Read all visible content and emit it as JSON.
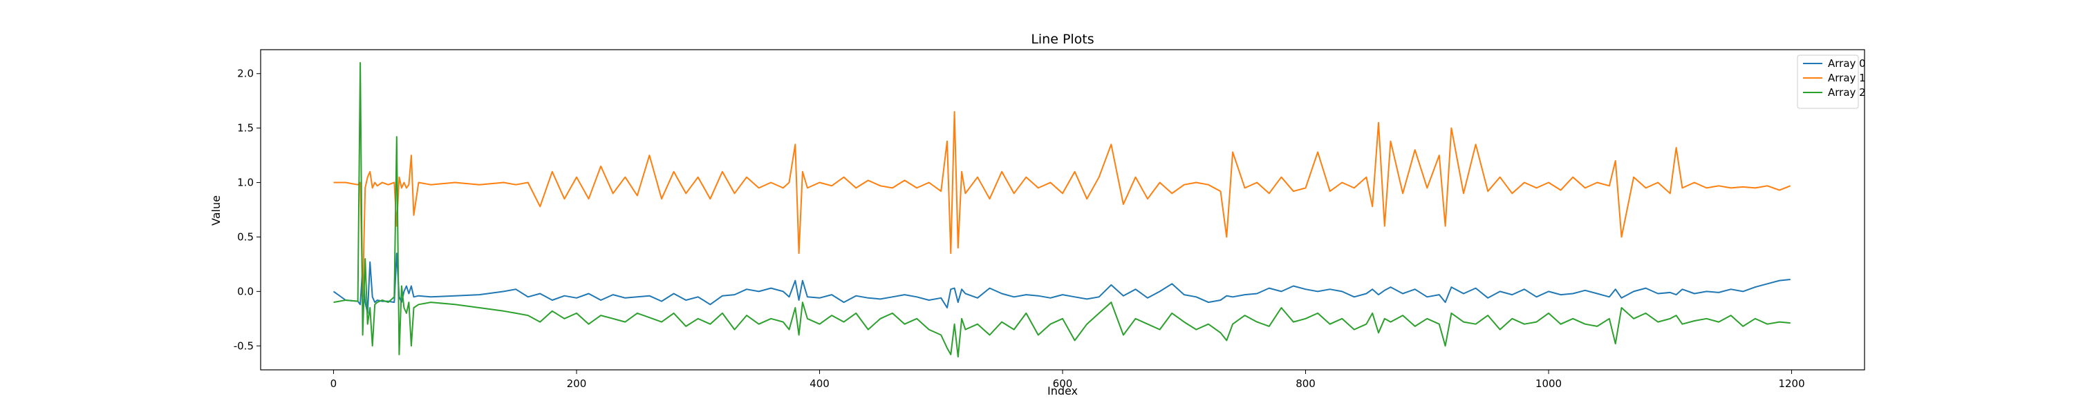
{
  "chart_data": {
    "type": "line",
    "title": "Line Plots",
    "xlabel": "Index",
    "ylabel": "Value",
    "xlim": [
      -60,
      1260
    ],
    "ylim": [
      -0.72,
      2.22
    ],
    "xticks": [
      0,
      200,
      400,
      600,
      800,
      1000,
      1200
    ],
    "yticks": [
      -0.5,
      0.0,
      0.5,
      1.0,
      1.5,
      2.0
    ],
    "ytick_labels": [
      "-0.5",
      "0.0",
      "0.5",
      "1.0",
      "1.5",
      "2.0"
    ],
    "grid": false,
    "legend_position": "top-right",
    "x": [
      0,
      10,
      20,
      22,
      24,
      26,
      28,
      30,
      32,
      34,
      36,
      40,
      45,
      50,
      52,
      54,
      56,
      58,
      60,
      62,
      64,
      66,
      70,
      80,
      100,
      120,
      140,
      150,
      160,
      170,
      180,
      190,
      200,
      210,
      220,
      230,
      240,
      250,
      260,
      270,
      280,
      290,
      300,
      310,
      320,
      330,
      340,
      350,
      360,
      370,
      375,
      380,
      383,
      386,
      390,
      400,
      410,
      420,
      430,
      440,
      450,
      460,
      470,
      480,
      490,
      500,
      505,
      508,
      511,
      514,
      517,
      520,
      530,
      540,
      550,
      560,
      570,
      580,
      590,
      600,
      610,
      620,
      630,
      640,
      650,
      660,
      670,
      680,
      690,
      700,
      710,
      720,
      730,
      735,
      740,
      750,
      760,
      770,
      780,
      790,
      800,
      810,
      820,
      830,
      840,
      850,
      855,
      860,
      865,
      870,
      880,
      890,
      900,
      910,
      915,
      920,
      930,
      940,
      950,
      960,
      970,
      980,
      990,
      1000,
      1010,
      1020,
      1030,
      1040,
      1050,
      1055,
      1060,
      1070,
      1080,
      1090,
      1100,
      1105,
      1110,
      1120,
      1130,
      1140,
      1150,
      1160,
      1170,
      1180,
      1190,
      1199
    ],
    "series": [
      {
        "name": "Array 0",
        "color": "#1f77b4",
        "values": [
          0.0,
          -0.08,
          -0.09,
          -0.12,
          0.22,
          -0.1,
          -0.2,
          0.27,
          -0.05,
          -0.1,
          -0.08,
          -0.09,
          -0.09,
          -0.1,
          0.35,
          -0.05,
          -0.1,
          0.0,
          0.05,
          -0.02,
          0.05,
          -0.05,
          -0.04,
          -0.05,
          -0.04,
          -0.03,
          0.0,
          0.02,
          -0.05,
          -0.02,
          -0.08,
          -0.04,
          -0.06,
          -0.02,
          -0.08,
          -0.03,
          -0.06,
          -0.05,
          -0.04,
          -0.09,
          -0.02,
          -0.08,
          -0.05,
          -0.12,
          -0.04,
          -0.03,
          0.02,
          0.0,
          0.03,
          0.0,
          -0.05,
          0.1,
          -0.08,
          0.1,
          -0.05,
          -0.06,
          -0.03,
          -0.1,
          -0.04,
          -0.06,
          -0.07,
          -0.05,
          -0.03,
          -0.05,
          -0.08,
          -0.06,
          -0.15,
          0.02,
          0.03,
          -0.1,
          0.02,
          -0.02,
          -0.06,
          0.03,
          -0.02,
          -0.05,
          -0.03,
          -0.04,
          -0.06,
          -0.03,
          -0.05,
          -0.07,
          -0.05,
          0.06,
          -0.04,
          0.02,
          -0.06,
          0.0,
          0.07,
          -0.03,
          -0.05,
          -0.1,
          -0.08,
          -0.04,
          -0.05,
          -0.03,
          -0.02,
          0.03,
          0.0,
          0.05,
          0.02,
          0.0,
          0.02,
          0.0,
          -0.05,
          -0.02,
          0.02,
          -0.03,
          0.01,
          0.04,
          -0.02,
          0.02,
          -0.05,
          -0.03,
          -0.1,
          0.04,
          -0.02,
          0.03,
          -0.06,
          0.0,
          -0.03,
          0.02,
          -0.05,
          0.0,
          -0.03,
          -0.02,
          0.01,
          -0.02,
          -0.05,
          0.02,
          -0.06,
          0.0,
          0.03,
          -0.02,
          -0.01,
          -0.03,
          0.02,
          -0.02,
          0.0,
          -0.01,
          0.02,
          0.0,
          0.04,
          0.07,
          0.1,
          0.11
        ]
      },
      {
        "name": "Array 1",
        "color": "#ff7f0e",
        "values": [
          1.0,
          1.0,
          0.98,
          1.0,
          -0.05,
          0.95,
          1.05,
          1.1,
          0.95,
          1.0,
          0.97,
          1.0,
          0.98,
          1.0,
          0.6,
          1.05,
          0.95,
          1.0,
          0.95,
          0.98,
          1.25,
          0.7,
          1.0,
          0.98,
          1.0,
          0.98,
          1.0,
          0.98,
          1.0,
          0.78,
          1.1,
          0.85,
          1.05,
          0.85,
          1.15,
          0.9,
          1.05,
          0.88,
          1.25,
          0.85,
          1.1,
          0.9,
          1.05,
          0.85,
          1.1,
          0.9,
          1.05,
          0.95,
          1.0,
          0.95,
          1.0,
          1.35,
          0.35,
          1.1,
          0.95,
          1.0,
          0.97,
          1.05,
          0.95,
          1.02,
          0.97,
          0.95,
          1.02,
          0.95,
          1.0,
          0.92,
          1.38,
          0.35,
          1.65,
          0.4,
          1.1,
          0.9,
          1.05,
          0.85,
          1.1,
          0.9,
          1.05,
          0.95,
          1.0,
          0.9,
          1.1,
          0.85,
          1.05,
          1.35,
          0.8,
          1.05,
          0.85,
          1.0,
          0.9,
          0.98,
          1.0,
          0.98,
          0.92,
          0.5,
          1.28,
          0.95,
          1.0,
          0.9,
          1.05,
          0.92,
          0.95,
          1.28,
          0.92,
          1.0,
          0.95,
          1.05,
          0.78,
          1.55,
          0.6,
          1.38,
          0.9,
          1.3,
          0.95,
          1.25,
          0.6,
          1.5,
          0.9,
          1.35,
          0.92,
          1.05,
          0.9,
          1.0,
          0.95,
          1.0,
          0.93,
          1.05,
          0.95,
          1.0,
          0.97,
          1.2,
          0.5,
          1.05,
          0.95,
          1.0,
          0.9,
          1.32,
          0.95,
          1.0,
          0.95,
          0.97,
          0.95,
          0.96,
          0.95,
          0.97,
          0.93,
          0.97
        ]
      },
      {
        "name": "Array 2",
        "color": "#2ca02c",
        "values": [
          -0.1,
          -0.08,
          -0.09,
          2.1,
          -0.4,
          0.3,
          -0.3,
          -0.15,
          -0.5,
          -0.12,
          -0.1,
          -0.08,
          -0.1,
          -0.05,
          1.42,
          -0.58,
          0.05,
          -0.15,
          -0.2,
          -0.1,
          -0.5,
          -0.15,
          -0.12,
          -0.1,
          -0.12,
          -0.15,
          -0.18,
          -0.2,
          -0.22,
          -0.28,
          -0.18,
          -0.25,
          -0.2,
          -0.3,
          -0.22,
          -0.25,
          -0.28,
          -0.2,
          -0.24,
          -0.28,
          -0.2,
          -0.32,
          -0.25,
          -0.3,
          -0.2,
          -0.35,
          -0.22,
          -0.3,
          -0.25,
          -0.28,
          -0.35,
          -0.15,
          -0.4,
          -0.1,
          -0.25,
          -0.3,
          -0.22,
          -0.28,
          -0.2,
          -0.35,
          -0.25,
          -0.2,
          -0.3,
          -0.25,
          -0.35,
          -0.4,
          -0.52,
          -0.58,
          -0.3,
          -0.6,
          -0.25,
          -0.35,
          -0.3,
          -0.4,
          -0.28,
          -0.35,
          -0.2,
          -0.4,
          -0.3,
          -0.25,
          -0.45,
          -0.3,
          -0.2,
          -0.1,
          -0.4,
          -0.25,
          -0.3,
          -0.35,
          -0.2,
          -0.28,
          -0.35,
          -0.3,
          -0.38,
          -0.45,
          -0.3,
          -0.22,
          -0.28,
          -0.32,
          -0.15,
          -0.28,
          -0.25,
          -0.2,
          -0.3,
          -0.25,
          -0.35,
          -0.3,
          -0.2,
          -0.38,
          -0.25,
          -0.28,
          -0.22,
          -0.32,
          -0.25,
          -0.3,
          -0.5,
          -0.2,
          -0.28,
          -0.3,
          -0.22,
          -0.35,
          -0.25,
          -0.3,
          -0.28,
          -0.2,
          -0.3,
          -0.25,
          -0.3,
          -0.32,
          -0.25,
          -0.48,
          -0.15,
          -0.25,
          -0.2,
          -0.28,
          -0.25,
          -0.22,
          -0.3,
          -0.27,
          -0.25,
          -0.28,
          -0.22,
          -0.32,
          -0.25,
          -0.3,
          -0.28,
          -0.29
        ]
      }
    ]
  }
}
